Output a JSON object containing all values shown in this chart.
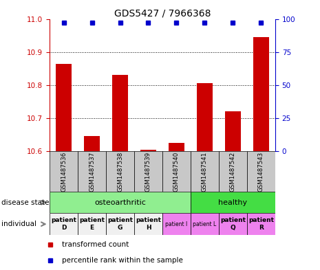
{
  "title": "GDS5427 / 7966368",
  "samples": [
    "GSM1487536",
    "GSM1487537",
    "GSM1487538",
    "GSM1487539",
    "GSM1487540",
    "GSM1487541",
    "GSM1487542",
    "GSM1487543"
  ],
  "red_values": [
    10.865,
    10.645,
    10.83,
    10.605,
    10.625,
    10.805,
    10.72,
    10.945
  ],
  "ylim_left": [
    10.6,
    11.0
  ],
  "ylim_right": [
    0,
    100
  ],
  "yticks_left": [
    10.6,
    10.7,
    10.8,
    10.9,
    11.0
  ],
  "yticks_right": [
    0,
    25,
    50,
    75,
    100
  ],
  "osteo_color": "#90EE90",
  "healthy_color": "#44DD44",
  "indiv_colors_white": [
    "#f0f0f0",
    "#f0f0f0",
    "#f0f0f0",
    "#f0f0f0"
  ],
  "indiv_color_violet": "#EE82EE",
  "bar_color": "#CC0000",
  "dot_color": "#0000CC",
  "axis_left_color": "#CC0000",
  "axis_right_color": "#0000CC",
  "sample_label_area_color": "#c8c8c8",
  "grid_yticks": [
    10.7,
    10.8,
    10.9
  ],
  "indiv_labels_bold": [
    "patient\nD",
    "patient\nE",
    "patient\nG",
    "patient\nH"
  ],
  "indiv_labels_small": [
    "patient I",
    "patient L"
  ],
  "indiv_labels_bold2": [
    "patient\nQ",
    "patient\nR"
  ]
}
